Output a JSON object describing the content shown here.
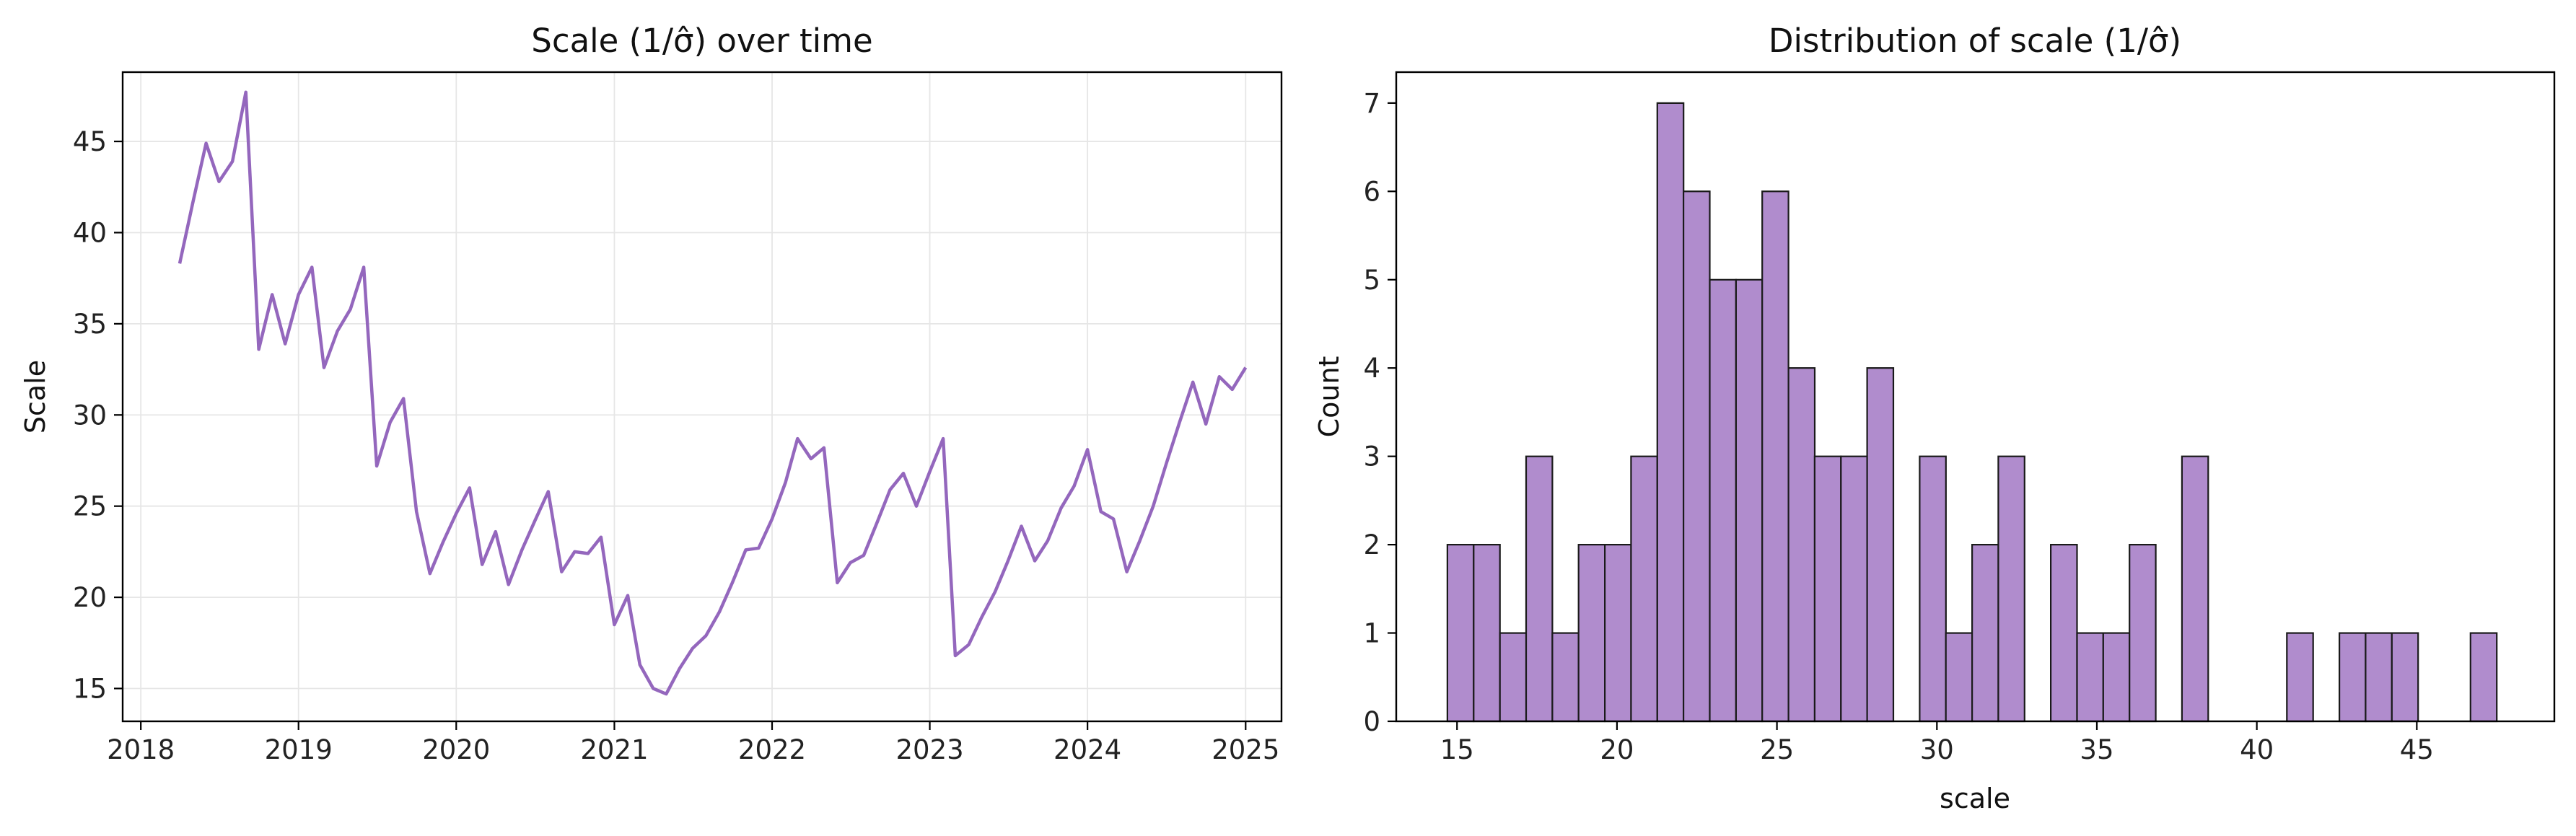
{
  "colors": {
    "line": "#9467bd",
    "bar_fill": "#b08ccd",
    "bar_edge": "#1a1a1a",
    "grid": "#e6e6e6",
    "axis": "#000000"
  },
  "chart_data": [
    {
      "type": "line",
      "title": "Scale (1/σ̂) over time",
      "xlabel": "",
      "ylabel": "Scale",
      "grid": true,
      "xlim": [
        "2017-11-20",
        "2025-03-25"
      ],
      "ylim": [
        13.2,
        48.8
      ],
      "xticks": [
        "2018",
        "2019",
        "2020",
        "2021",
        "2022",
        "2023",
        "2024",
        "2025"
      ],
      "yticks": [
        15,
        20,
        25,
        30,
        35,
        40,
        45
      ],
      "series": [
        {
          "x": [
            "2018-04-01",
            "2018-05-01",
            "2018-06-01",
            "2018-07-01",
            "2018-08-01",
            "2018-09-01",
            "2018-10-01",
            "2018-11-01",
            "2018-12-01",
            "2019-01-01",
            "2019-02-01",
            "2019-03-01",
            "2019-04-01",
            "2019-05-01",
            "2019-06-01",
            "2019-07-01",
            "2019-08-01",
            "2019-09-01",
            "2019-10-01",
            "2019-11-01",
            "2019-12-01",
            "2020-01-01",
            "2020-02-01",
            "2020-03-01",
            "2020-04-01",
            "2020-05-01",
            "2020-06-01",
            "2020-07-01",
            "2020-08-01",
            "2020-09-01",
            "2020-10-01",
            "2020-11-01",
            "2020-12-01",
            "2021-01-01",
            "2021-02-01",
            "2021-03-01",
            "2021-04-01",
            "2021-05-01",
            "2021-06-01",
            "2021-07-01",
            "2021-08-01",
            "2021-09-01",
            "2021-10-01",
            "2021-11-01",
            "2021-12-01",
            "2022-01-01",
            "2022-02-01",
            "2022-03-01",
            "2022-04-01",
            "2022-05-01",
            "2022-06-01",
            "2022-07-01",
            "2022-08-01",
            "2022-09-01",
            "2022-10-01",
            "2022-11-01",
            "2022-12-01",
            "2023-01-01",
            "2023-02-01",
            "2023-03-01",
            "2023-04-01",
            "2023-05-01",
            "2023-06-01",
            "2023-07-01",
            "2023-08-01",
            "2023-09-01",
            "2023-10-01",
            "2023-11-01",
            "2023-12-01",
            "2024-01-01",
            "2024-02-01",
            "2024-03-01",
            "2024-04-01",
            "2024-05-01",
            "2024-06-01",
            "2024-07-01",
            "2024-08-01",
            "2024-09-01",
            "2024-10-01",
            "2024-11-01",
            "2024-12-01",
            "2025-01-01"
          ],
          "y": [
            38.3,
            41.6,
            44.9,
            42.8,
            43.9,
            47.7,
            33.6,
            36.6,
            33.9,
            36.6,
            38.1,
            32.6,
            34.6,
            35.8,
            38.1,
            27.2,
            29.6,
            30.9,
            24.7,
            21.3,
            23.0,
            24.6,
            26.0,
            21.8,
            23.6,
            20.7,
            22.6,
            24.2,
            25.8,
            21.4,
            22.5,
            22.4,
            23.3,
            18.5,
            20.1,
            16.3,
            15.0,
            14.7,
            16.1,
            17.2,
            17.9,
            19.2,
            20.8,
            22.6,
            22.7,
            24.3,
            26.3,
            28.7,
            27.6,
            28.2,
            20.8,
            21.9,
            22.3,
            24.1,
            25.9,
            26.8,
            25.0,
            26.9,
            28.7,
            16.8,
            17.4,
            18.9,
            20.3,
            22.0,
            23.9,
            22.0,
            23.1,
            24.9,
            26.1,
            28.1,
            24.7,
            24.3,
            21.4,
            23.1,
            25.0,
            27.3,
            29.6,
            31.8,
            29.5,
            32.1,
            31.4,
            32.6
          ]
        }
      ]
    },
    {
      "type": "bar",
      "subtype": "histogram",
      "title": "Distribution of scale (1/σ̂)",
      "xlabel": "scale",
      "ylabel": "Count",
      "grid": false,
      "xlim": [
        13.1,
        49.3
      ],
      "ylim": [
        0,
        7.35
      ],
      "xticks": [
        15,
        20,
        25,
        30,
        35,
        40,
        45
      ],
      "yticks": [
        0,
        1,
        2,
        3,
        4,
        5,
        6,
        7
      ],
      "bins": {
        "start": 14.7,
        "width": 0.82,
        "counts": [
          2,
          2,
          1,
          3,
          1,
          2,
          2,
          3,
          7,
          6,
          5,
          5,
          6,
          4,
          3,
          3,
          4,
          0,
          3,
          1,
          2,
          3,
          0,
          2,
          1,
          1,
          2,
          0,
          3,
          0,
          0,
          0,
          1,
          0,
          1,
          1,
          1,
          0,
          0,
          1
        ]
      }
    }
  ]
}
